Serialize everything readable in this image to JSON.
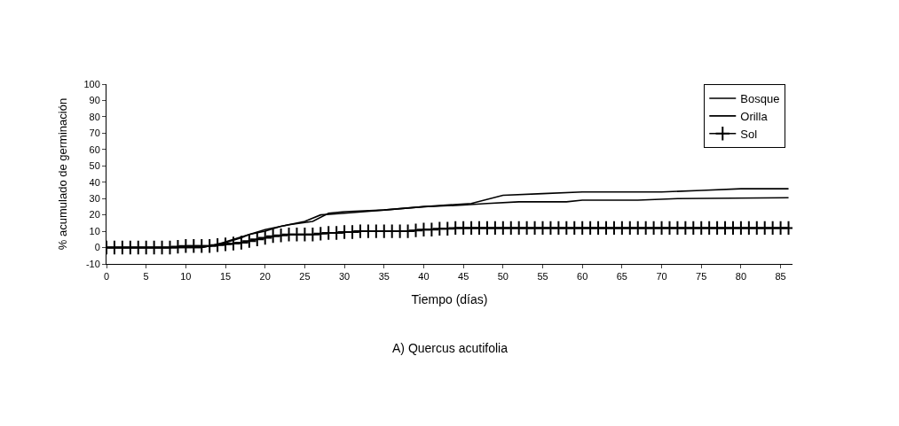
{
  "chart_data": {
    "type": "line",
    "xlabel": "Tiempo (días)",
    "ylabel": "% acumulado de germinación",
    "annotations": [
      "A) Quercus acutifolia"
    ],
    "xlim": [
      0,
      86.5
    ],
    "xticks": [
      0,
      5,
      10,
      15,
      20,
      25,
      30,
      35,
      40,
      45,
      50,
      55,
      60,
      65,
      70,
      75,
      80,
      85
    ],
    "ylim": [
      -10,
      100
    ],
    "yticks": [
      -10,
      0,
      10,
      20,
      30,
      40,
      50,
      60,
      70,
      80,
      90,
      100
    ],
    "legend": "top right",
    "series": [
      {
        "name": "Bosque",
        "color": "#000000",
        "marker": "none",
        "x": [
          0,
          12,
          13,
          15,
          17,
          18,
          20,
          22,
          25,
          27,
          30,
          35,
          40,
          45,
          48,
          52,
          58,
          60,
          67,
          72,
          86
        ],
        "values": [
          0,
          0,
          1,
          3,
          6,
          8,
          10,
          13,
          16,
          20,
          21,
          23,
          25,
          26,
          27,
          28,
          28,
          29,
          29,
          30,
          30.5
        ]
      },
      {
        "name": "Orilla",
        "color": "#000000",
        "marker": "none",
        "x": [
          0,
          12,
          14,
          16,
          18,
          20,
          23,
          26,
          28,
          30,
          35,
          40,
          46,
          50,
          55,
          60,
          70,
          75,
          80,
          86
        ],
        "values": [
          0,
          0,
          2,
          5,
          8,
          11,
          14,
          16,
          21,
          22,
          23,
          25,
          27,
          32,
          33,
          34,
          34,
          35,
          36,
          36
        ]
      },
      {
        "name": "Sol",
        "color": "#000000",
        "marker": "cross",
        "x": [
          0,
          1,
          2,
          3,
          4,
          5,
          6,
          7,
          8,
          9,
          10,
          11,
          12,
          13,
          14,
          15,
          16,
          17,
          18,
          19,
          20,
          21,
          22,
          23,
          24,
          25,
          26,
          27,
          28,
          29,
          30,
          31,
          32,
          33,
          34,
          35,
          36,
          37,
          38,
          39,
          40,
          41,
          42,
          43,
          44,
          45,
          46,
          47,
          48,
          49,
          50,
          51,
          52,
          53,
          54,
          55,
          56,
          57,
          58,
          59,
          60,
          61,
          62,
          63,
          64,
          65,
          66,
          67,
          68,
          69,
          70,
          71,
          72,
          73,
          74,
          75,
          76,
          77,
          78,
          79,
          80,
          81,
          82,
          83,
          84,
          85,
          86
        ],
        "values": [
          0,
          0,
          0,
          0,
          0,
          0,
          0,
          0,
          0,
          0.5,
          1,
          1,
          1,
          1,
          1.5,
          2,
          2.5,
          3,
          4,
          5,
          6,
          7,
          7.5,
          8,
          8,
          8,
          8,
          8.5,
          9,
          9,
          9.5,
          9.5,
          10,
          10,
          10,
          10,
          10,
          10,
          10,
          10.5,
          11,
          11,
          11.5,
          11.5,
          12,
          12,
          12,
          12,
          12,
          12,
          12,
          12,
          12,
          12,
          12,
          12,
          12,
          12,
          12,
          12,
          12,
          12,
          12,
          12,
          12,
          12,
          12,
          12,
          12,
          12,
          12,
          12,
          12,
          12,
          12,
          12,
          12,
          12,
          12,
          12,
          12,
          12,
          12,
          12,
          12,
          12,
          12
        ]
      }
    ]
  }
}
